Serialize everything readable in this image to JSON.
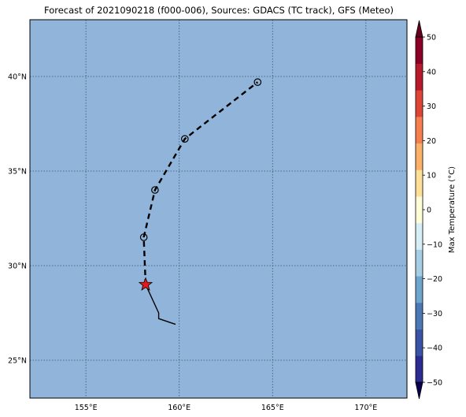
{
  "title": "Forecast of 2021090218 (f000-006), Sources: GDACS (TC track), GFS (Meteo)",
  "map": {
    "lon_range": [
      152.0,
      172.2
    ],
    "lat_range": [
      23.0,
      43.0
    ],
    "ocean_color": "#91b5da",
    "grid": true,
    "lon_ticks": [
      155,
      160,
      165,
      170
    ],
    "lon_tick_labels": [
      "155°E",
      "160°E",
      "165°E",
      "170°E"
    ],
    "lat_ticks": [
      25,
      30,
      35,
      40
    ],
    "lat_tick_labels": [
      "25°N",
      "30°N",
      "35°N",
      "40°N"
    ]
  },
  "track": {
    "observed": [
      [
        159.8,
        26.9
      ],
      [
        158.9,
        27.2
      ],
      [
        158.9,
        27.5
      ],
      [
        158.2,
        29.0
      ]
    ],
    "forecast": [
      [
        158.2,
        29.0
      ],
      [
        158.1,
        31.5
      ],
      [
        158.7,
        34.0
      ],
      [
        160.3,
        36.7
      ],
      [
        164.2,
        39.7
      ]
    ],
    "forecast_markers": [
      [
        158.1,
        31.5
      ],
      [
        158.7,
        34.0
      ],
      [
        160.3,
        36.7
      ],
      [
        164.2,
        39.7
      ]
    ],
    "current_position": [
      158.2,
      29.0
    ],
    "current_marker": "star-icon",
    "current_color": "#e0191a"
  },
  "colorbar": {
    "label": "Max Temperature (°C)",
    "ticks": [
      50,
      40,
      30,
      20,
      10,
      0,
      -10,
      -20,
      -30,
      -40,
      -50
    ],
    "tick_labels": [
      "50",
      "40",
      "30",
      "20",
      "10",
      "0",
      "−10",
      "−20",
      "−30",
      "−40",
      "−50"
    ],
    "top_color": "#67001f",
    "bottom_color": "#0a0050",
    "colors": [
      "#2b2b93",
      "#3a53a4",
      "#4b79b6",
      "#6ea5cd",
      "#a5cde3",
      "#d6eef5",
      "#fffdd8",
      "#fedf97",
      "#fbb169",
      "#f57f4e",
      "#dd4636",
      "#b61a2b",
      "#8a0026"
    ]
  }
}
